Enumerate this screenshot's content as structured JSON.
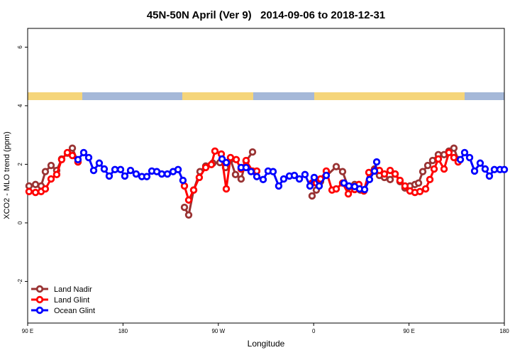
{
  "chart_data": {
    "type": "line",
    "title": "45N-50N April (Ver 9)   2014-09-06 to 2018-12-31",
    "xlabel": "Longitude",
    "ylabel": "XCO2 - MLO trend (ppm)",
    "xlim": [
      90,
      540
    ],
    "xticks": [
      {
        "value": 90,
        "label": "90 E"
      },
      180,
      {
        "value": 270,
        "label": "90 W"
      },
      {
        "value": 360,
        "label": "0"
      },
      {
        "value": 450,
        "label": "90 E"
      },
      {
        "value": 540,
        "label": "180"
      }
    ],
    "ylim": [
      -3.42,
      6.64
    ],
    "yticks": [
      -2,
      0,
      2,
      4,
      6
    ],
    "legend": "bottom-left",
    "series": [
      {
        "name": "Land Nadir",
        "color": "#993333",
        "x": [
          91.3,
          97.4,
          102.7,
          106.7,
          112.1,
          117.4,
          122.1,
          127.5,
          132.2,
          137.5,
          190,
          238.0,
          242.0,
          246.7,
          252.7,
          258.1,
          264.8,
          271.5,
          276.8,
          281.5,
          286.2,
          291.5,
          296.2,
          302.3,
          330,
          358.5,
          362.5,
          366.5,
          381.3,
          387.3,
          392.7,
          398.7,
          404.0,
          412,
          417.4,
          422.1,
          426.8,
          432.2,
          436.9,
          441.5,
          446.2,
          450.9,
          455.6,
          459.0,
          463.0,
          467.7,
          472.3,
          477.7,
          483.1,
          487.7,
          492.4,
          496.4
        ],
        "values": [
          1.26,
          1.31,
          1.26,
          1.75,
          1.96,
          1.79,
          2.18,
          2.38,
          2.55,
          2.08,
          null,
          0.53,
          0.27,
          1.12,
          1.75,
          1.94,
          2.04,
          2.06,
          1.89,
          2.16,
          1.65,
          1.5,
          2.11,
          2.42,
          null,
          0.92,
          1.12,
          1.41,
          1.92,
          1.75,
          1.21,
          1.31,
          1.12,
          null,
          1.84,
          1.62,
          1.55,
          1.48,
          1.67,
          1.41,
          1.19,
          1.26,
          1.31,
          1.36,
          1.75,
          1.96,
          2.13,
          2.33,
          2.33,
          2.45,
          2.55,
          2.16
        ]
      },
      {
        "name": "Land Glint",
        "color": "#ff0000",
        "x": [
          91.3,
          97.4,
          102.7,
          106.7,
          112.1,
          117.4,
          122.1,
          127.5,
          132.2,
          137.5,
          190,
          238.0,
          242.0,
          246.7,
          252.0,
          258.1,
          263.4,
          266.8,
          272.8,
          277.5,
          281.5,
          286.9,
          291.5,
          296.2,
          302.3,
          306.3,
          330,
          358.5,
          362.5,
          366.5,
          371.9,
          377.3,
          381.3,
          387.3,
          392.7,
          398.7,
          402.7,
          407.4,
          412.1,
          417.4,
          422.1,
          426.8,
          432.2,
          436.9,
          441.5,
          446.2,
          450.9,
          455.6,
          460.3,
          465.7,
          469.7,
          473.7,
          477.7,
          483.1,
          487.7,
          492.4,
          496.4
        ],
        "values": [
          1.07,
          1.04,
          1.07,
          1.16,
          1.5,
          1.65,
          2.16,
          2.4,
          2.3,
          2.08,
          null,
          1.26,
          0.78,
          1.12,
          1.55,
          1.89,
          1.99,
          2.45,
          2.35,
          1.16,
          2.23,
          2.16,
          1.84,
          2.13,
          1.77,
          1.77,
          null,
          1.36,
          1.36,
          1.5,
          1.77,
          1.12,
          1.16,
          1.36,
          0.99,
          1.14,
          1.31,
          1.09,
          1.72,
          1.79,
          1.79,
          1.67,
          1.79,
          1.67,
          1.45,
          1.26,
          1.09,
          1.04,
          1.07,
          1.16,
          1.48,
          1.84,
          2.18,
          1.84,
          2.4,
          2.23,
          2.08
        ]
      },
      {
        "name": "Ocean Glint",
        "color": "#0000ff",
        "x": [
          137.5,
          142.9,
          147.6,
          152.3,
          157.6,
          162.3,
          167.0,
          172.4,
          177.7,
          181.7,
          187.1,
          192.4,
          197.8,
          202.5,
          207.2,
          211.9,
          216.6,
          221.9,
          227.3,
          232.0,
          236.6,
          255,
          273.5,
          277.5,
          285,
          291.5,
          296.2,
          300.9,
          306.3,
          312.3,
          317.0,
          321.7,
          327.0,
          331.7,
          337.1,
          341.8,
          346.5,
          351.8,
          356.5,
          360.5,
          365.2,
          371.9,
          380,
          388.6,
          393.3,
          398.7,
          403.4,
          408.1,
          412.7,
          417.4,
          419.5,
          460,
          498.5,
          502.5,
          507.2,
          511.9,
          517.2,
          521.9,
          525.9,
          530.6,
          535.9,
          540.0
        ],
        "values": [
          2.16,
          2.4,
          2.23,
          1.79,
          2.04,
          1.84,
          1.6,
          1.82,
          1.82,
          1.6,
          1.79,
          1.67,
          1.58,
          1.58,
          1.77,
          1.75,
          1.67,
          1.67,
          1.75,
          1.82,
          1.45,
          null,
          2.18,
          2.06,
          null,
          1.89,
          1.89,
          1.75,
          1.58,
          1.48,
          1.77,
          1.75,
          1.26,
          1.5,
          1.6,
          1.62,
          1.5,
          1.65,
          1.26,
          1.55,
          1.26,
          1.62,
          null,
          1.36,
          1.26,
          1.24,
          1.16,
          1.14,
          1.48,
          1.77,
          2.08,
          null,
          2.16,
          2.4,
          2.23,
          1.77,
          2.04,
          1.84,
          1.6,
          1.82,
          1.82,
          1.82
        ]
      }
    ]
  }
}
